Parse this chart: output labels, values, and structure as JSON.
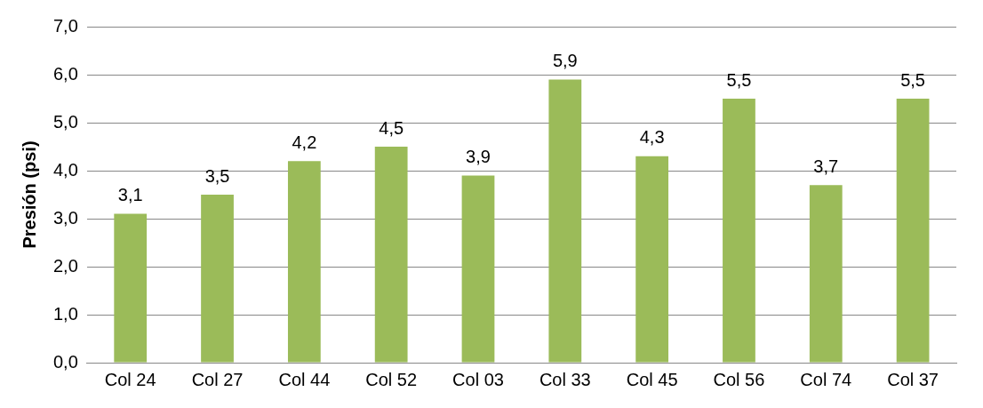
{
  "chart_data": {
    "type": "bar",
    "ylabel": "Presión (psi)",
    "categories": [
      "Col 24",
      "Col 27",
      "Col 44",
      "Col 52",
      "Col 03",
      "Col 33",
      "Col 45",
      "Col 56",
      "Col 74",
      "Col 37"
    ],
    "values": [
      3.1,
      3.5,
      4.2,
      4.5,
      3.9,
      5.9,
      4.3,
      5.5,
      3.7,
      5.5
    ],
    "value_labels": [
      "3,1",
      "3,5",
      "4,2",
      "4,5",
      "3,9",
      "5,9",
      "4,3",
      "5,5",
      "3,7",
      "5,5"
    ],
    "color": "#9bbb59",
    "ylim": [
      0,
      7
    ],
    "yticks": [
      {
        "value": 0,
        "label": "0,0"
      },
      {
        "value": 1,
        "label": "1,0"
      },
      {
        "value": 2,
        "label": "2,0"
      },
      {
        "value": 3,
        "label": "3,0"
      },
      {
        "value": 4,
        "label": "4,0"
      },
      {
        "value": 5,
        "label": "5,0"
      },
      {
        "value": 6,
        "label": "6,0"
      },
      {
        "value": 7,
        "label": "7,0"
      }
    ],
    "grid": "y",
    "legend": false
  }
}
